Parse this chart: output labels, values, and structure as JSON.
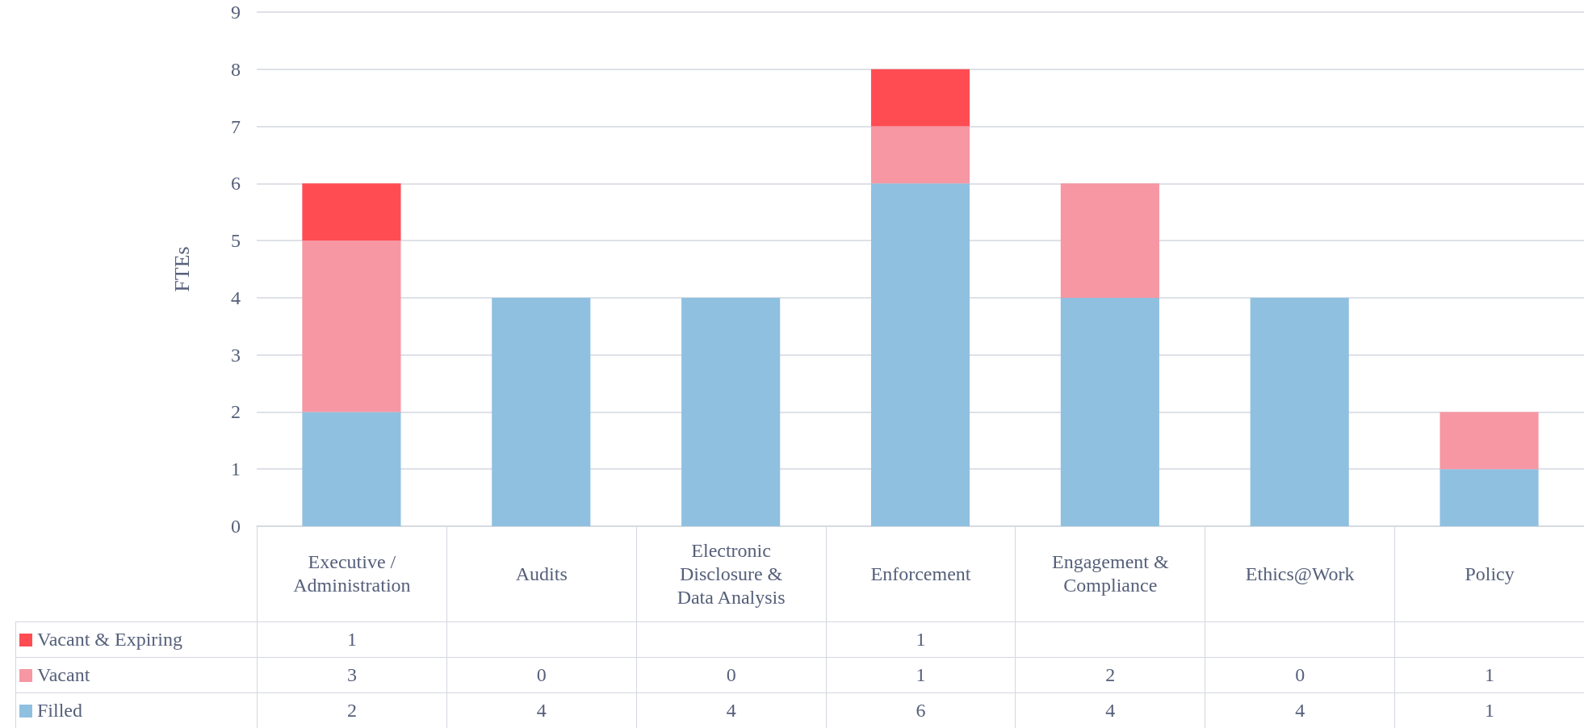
{
  "chart_data": {
    "type": "bar",
    "stacked": true,
    "ylabel": "FTEs",
    "categories": [
      "Executive / Administration",
      "Audits",
      "Electronic Disclosure & Data Analysis",
      "Enforcement",
      "Engagement & Compliance",
      "Ethics@Work",
      "Policy"
    ],
    "series": [
      {
        "name": "Filled",
        "color": "#8fc0e0",
        "values": [
          2,
          4,
          4,
          6,
          4,
          4,
          1
        ]
      },
      {
        "name": "Vacant",
        "color": "#f697a3",
        "values": [
          3,
          0,
          0,
          1,
          2,
          0,
          1
        ]
      },
      {
        "name": "Vacant & Expiring",
        "color": "#ff4c52",
        "values": [
          1,
          null,
          null,
          1,
          null,
          null,
          null
        ]
      }
    ],
    "ylim": [
      0,
      9
    ],
    "yticks": [
      0,
      1,
      2,
      3,
      4,
      5,
      6,
      7,
      8,
      9
    ],
    "grid": "y",
    "legend": "bottom",
    "data_labels": true
  }
}
